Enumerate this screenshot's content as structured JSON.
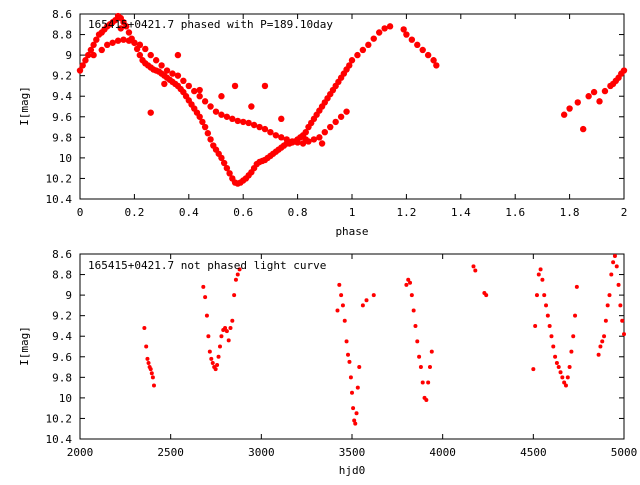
{
  "colors": {
    "points": "#ff0000",
    "axes": "#000000",
    "background": "#ffffff"
  },
  "chart_data": [
    {
      "type": "scatter",
      "title": "165415+0421.7 phased with P=189.10day",
      "xlabel": "phase",
      "ylabel": "I[mag]",
      "xlim": [
        0,
        2
      ],
      "ylim": [
        8.6,
        10.4
      ],
      "y_inverted": true,
      "x_ticks": [
        "0",
        "0.2",
        "0.4",
        "0.6",
        "0.8",
        "1",
        "1.2",
        "1.4",
        "1.6",
        "1.8",
        "2"
      ],
      "y_ticks": [
        "8.6",
        "8.8",
        "9",
        "9.2",
        "9.4",
        "9.6",
        "9.8",
        "10",
        "10.2",
        "10.4"
      ],
      "grid": false,
      "series": [
        {
          "x": [
            0.0,
            0.01,
            0.02,
            0.03,
            0.04,
            0.05,
            0.06,
            0.07,
            0.08,
            0.09,
            0.1,
            0.11,
            0.12,
            0.13,
            0.14,
            0.15,
            0.16,
            0.17,
            0.18,
            0.19,
            0.2,
            0.21,
            0.22,
            0.23,
            0.24,
            0.25,
            0.26,
            0.27,
            0.28,
            0.29,
            0.3,
            0.31,
            0.32,
            0.33,
            0.34,
            0.35,
            0.36,
            0.37,
            0.38,
            0.39,
            0.4,
            0.41,
            0.42,
            0.43,
            0.44,
            0.45,
            0.46,
            0.47,
            0.48,
            0.49,
            0.5,
            0.51,
            0.52,
            0.53,
            0.54,
            0.55,
            0.56,
            0.57,
            0.58,
            0.59,
            0.6,
            0.61,
            0.62,
            0.63,
            0.64,
            0.65,
            0.66,
            0.67,
            0.68,
            0.69,
            0.7,
            0.71,
            0.72,
            0.73,
            0.74,
            0.75,
            0.76,
            0.77,
            0.78,
            0.79,
            0.8,
            0.81,
            0.82,
            0.83,
            0.84,
            0.85,
            0.86,
            0.87,
            0.88,
            0.89,
            0.9,
            0.91,
            0.92,
            0.93,
            0.94,
            0.95,
            0.96,
            0.97,
            0.98,
            0.99,
            1.0,
            1.02,
            1.04,
            1.06,
            1.08,
            1.1,
            1.12,
            1.14,
            1.19,
            1.2,
            1.22,
            1.24,
            1.26,
            1.28,
            1.3,
            1.31,
            0.05,
            0.08,
            0.1,
            0.12,
            0.14,
            0.16,
            0.18,
            0.2,
            0.22,
            0.24,
            0.26,
            0.28,
            0.3,
            0.32,
            0.34,
            0.36,
            0.38,
            0.4,
            0.42,
            0.44,
            0.46,
            0.48,
            0.5,
            0.52,
            0.54,
            0.56,
            0.58,
            0.6,
            0.62,
            0.64,
            0.66,
            0.68,
            0.7,
            0.72,
            0.74,
            0.76,
            0.78,
            0.8,
            0.82,
            0.84,
            0.86,
            0.88,
            0.9,
            0.92,
            0.94,
            0.96,
            0.98,
            0.15,
            0.22,
            0.26,
            0.31,
            0.36,
            0.44,
            0.52,
            0.57,
            0.63,
            0.68,
            0.74,
            0.83,
            0.89,
            1.78,
            1.8,
            1.83,
            1.85,
            1.87,
            1.89,
            1.91,
            1.93,
            1.95,
            1.96,
            1.97,
            1.98,
            1.99,
            2.0
          ],
          "y": [
            9.15,
            9.1,
            9.05,
            9.0,
            8.95,
            8.9,
            8.85,
            8.8,
            8.78,
            8.75,
            8.72,
            8.7,
            8.68,
            8.66,
            8.62,
            8.64,
            8.68,
            8.72,
            8.78,
            8.84,
            8.88,
            8.94,
            9.0,
            9.05,
            9.08,
            9.1,
            9.12,
            9.14,
            9.15,
            9.16,
            9.18,
            9.2,
            9.22,
            9.24,
            9.26,
            9.28,
            9.3,
            9.33,
            9.36,
            9.4,
            9.44,
            9.48,
            9.52,
            9.56,
            9.6,
            9.65,
            9.7,
            9.76,
            9.82,
            9.88,
            9.92,
            9.96,
            10.0,
            10.05,
            10.1,
            10.15,
            10.2,
            10.24,
            10.25,
            10.24,
            10.22,
            10.2,
            10.17,
            10.14,
            10.1,
            10.06,
            10.04,
            10.03,
            10.02,
            10.0,
            9.98,
            9.96,
            9.94,
            9.92,
            9.9,
            9.88,
            9.86,
            9.86,
            9.85,
            9.84,
            9.82,
            9.8,
            9.78,
            9.75,
            9.7,
            9.66,
            9.62,
            9.58,
            9.54,
            9.5,
            9.46,
            9.42,
            9.38,
            9.34,
            9.3,
            9.26,
            9.22,
            9.18,
            9.14,
            9.1,
            9.05,
            9.0,
            8.95,
            8.9,
            8.84,
            8.78,
            8.74,
            8.72,
            8.75,
            8.8,
            8.85,
            8.9,
            8.95,
            9.0,
            9.05,
            9.1,
            9.0,
            8.95,
            8.9,
            8.88,
            8.86,
            8.85,
            8.86,
            8.88,
            8.9,
            8.94,
            9.0,
            9.05,
            9.1,
            9.15,
            9.18,
            9.2,
            9.25,
            9.3,
            9.35,
            9.4,
            9.45,
            9.5,
            9.55,
            9.58,
            9.6,
            9.62,
            9.64,
            9.65,
            9.66,
            9.68,
            9.7,
            9.72,
            9.75,
            9.78,
            9.8,
            9.82,
            9.84,
            9.85,
            9.86,
            9.84,
            9.82,
            9.8,
            9.75,
            9.7,
            9.65,
            9.6,
            9.55,
            8.74,
            8.9,
            9.56,
            9.28,
            9.0,
            9.34,
            9.4,
            9.3,
            9.5,
            9.3,
            9.62,
            9.82,
            9.86,
            9.58,
            9.52,
            9.46,
            9.72,
            9.4,
            9.36,
            9.45,
            9.35,
            9.3,
            9.28,
            9.25,
            9.22,
            9.18,
            9.15
          ],
          "marker_size": 3.2
        }
      ]
    },
    {
      "type": "scatter",
      "title": "165415+0421.7 not phased light curve",
      "xlabel": "hjd0",
      "ylabel": "I[mag]",
      "xlim": [
        2000,
        5000
      ],
      "ylim": [
        8.6,
        10.4
      ],
      "y_inverted": true,
      "x_ticks": [
        "2000",
        "2500",
        "3000",
        "3500",
        "4000",
        "4500",
        "5000"
      ],
      "y_ticks": [
        "8.6",
        "8.8",
        "9",
        "9.2",
        "9.4",
        "9.6",
        "9.8",
        "10",
        "10.2",
        "10.4"
      ],
      "grid": false,
      "series": [
        {
          "x": [
            2355,
            2365,
            2372,
            2378,
            2384,
            2390,
            2396,
            2402,
            2408,
            2680,
            2690,
            2700,
            2708,
            2716,
            2724,
            2732,
            2740,
            2748,
            2756,
            2764,
            2772,
            2780,
            2790,
            2800,
            2810,
            2820,
            2830,
            2840,
            2850,
            2860,
            2870,
            2880,
            3420,
            3430,
            3440,
            3450,
            3460,
            3470,
            3478,
            3486,
            3494,
            3500,
            3506,
            3512,
            3518,
            3525,
            3532,
            3540,
            3560,
            3580,
            3620,
            3800,
            3810,
            3820,
            3830,
            3840,
            3850,
            3860,
            3870,
            3880,
            3890,
            3900,
            3910,
            3920,
            3930,
            3940,
            4170,
            4180,
            4230,
            4240,
            4500,
            4510,
            4520,
            4530,
            4540,
            4550,
            4560,
            4570,
            4580,
            4590,
            4600,
            4610,
            4620,
            4630,
            4640,
            4650,
            4660,
            4670,
            4680,
            4690,
            4700,
            4710,
            4720,
            4730,
            4740,
            4860,
            4870,
            4880,
            4890,
            4900,
            4910,
            4920,
            4930,
            4940,
            4950,
            4960,
            4970,
            4980,
            4990,
            5000
          ],
          "y": [
            9.32,
            9.5,
            9.62,
            9.66,
            9.7,
            9.72,
            9.76,
            9.8,
            9.88,
            8.92,
            9.02,
            9.2,
            9.4,
            9.55,
            9.62,
            9.66,
            9.7,
            9.72,
            9.68,
            9.6,
            9.5,
            9.4,
            9.34,
            9.32,
            9.35,
            9.44,
            9.32,
            9.25,
            9.0,
            8.85,
            8.8,
            8.75,
            9.15,
            8.9,
            9.0,
            9.1,
            9.25,
            9.45,
            9.58,
            9.65,
            9.8,
            9.95,
            10.1,
            10.22,
            10.25,
            10.15,
            9.9,
            9.7,
            9.1,
            9.05,
            9.0,
            8.9,
            8.85,
            8.88,
            9.0,
            9.15,
            9.3,
            9.45,
            9.6,
            9.7,
            9.85,
            10.0,
            10.02,
            9.85,
            9.7,
            9.55,
            8.72,
            8.76,
            8.98,
            9.0,
            9.72,
            9.3,
            9.0,
            8.8,
            8.75,
            8.85,
            9.0,
            9.1,
            9.2,
            9.3,
            9.4,
            9.5,
            9.6,
            9.66,
            9.7,
            9.75,
            9.8,
            9.85,
            9.88,
            9.8,
            9.7,
            9.55,
            9.4,
            9.2,
            8.92,
            9.58,
            9.5,
            9.45,
            9.4,
            9.25,
            9.1,
            9.0,
            8.8,
            8.68,
            8.62,
            8.72,
            8.9,
            9.1,
            9.25,
            9.38
          ],
          "marker_size": 2.0
        }
      ]
    }
  ]
}
